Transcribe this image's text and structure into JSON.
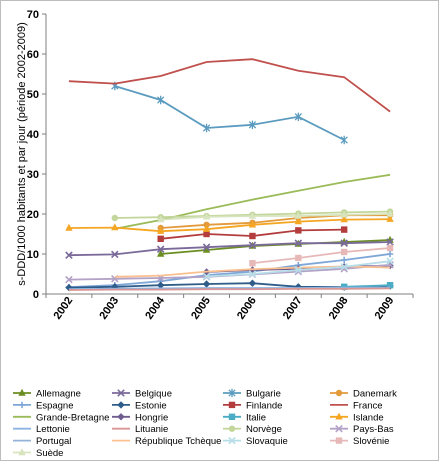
{
  "chart_data": {
    "type": "line",
    "title": "",
    "ylabel": "s-DDD/1000 habitants et par jour (période 2002-2009)",
    "xlabel": "",
    "ylim": [
      0,
      70
    ],
    "yticks": [
      0,
      10,
      20,
      30,
      40,
      50,
      60,
      70
    ],
    "x": [
      "2002",
      "2003",
      "2004",
      "2005",
      "2006",
      "2007",
      "2008",
      "2009"
    ],
    "grid": false,
    "legend_position": "bottom",
    "series": [
      {
        "name": "Allemagne",
        "color": "#6b8e23",
        "marker": "triangle",
        "values": [
          null,
          null,
          10,
          11,
          12,
          12.5,
          13,
          13.5
        ]
      },
      {
        "name": "Belgique",
        "color": "#7a6a9a",
        "marker": "x",
        "values": [
          9.7,
          9.9,
          11.2,
          11.7,
          12.2,
          12.7,
          12.7,
          13
        ]
      },
      {
        "name": "Bulgarie",
        "color": "#5b9bbf",
        "marker": "star",
        "values": [
          null,
          52,
          48.5,
          41.5,
          42.3,
          44.3,
          38.5,
          null
        ]
      },
      {
        "name": "Danemark",
        "color": "#e39a3b",
        "marker": "circle",
        "values": [
          null,
          null,
          16.5,
          17.3,
          17.8,
          19,
          19.7,
          19.7
        ]
      },
      {
        "name": "Espagne",
        "color": "#7ea7d8",
        "marker": "plus",
        "values": [
          1.7,
          2.2,
          3.2,
          4.7,
          5.6,
          7.2,
          8.5,
          10
        ]
      },
      {
        "name": "Estonie",
        "color": "#2f5d8a",
        "marker": "diamond",
        "values": [
          1.6,
          1.8,
          2.2,
          2.5,
          2.7,
          1.8,
          1.7,
          2
        ]
      },
      {
        "name": "Finlande",
        "color": "#b33d3d",
        "marker": "square",
        "values": [
          null,
          null,
          13.8,
          15,
          14.5,
          15.9,
          16.1,
          null
        ]
      },
      {
        "name": "France",
        "color": "#c0504d",
        "marker": "none",
        "values": [
          53.2,
          52.6,
          54.5,
          58,
          58.7,
          55.8,
          54.2,
          45.6
        ]
      },
      {
        "name": "Grande-Bretagne",
        "color": "#9bbb59",
        "marker": "none",
        "values": [
          null,
          16.3,
          18.5,
          21.2,
          23.6,
          25.8,
          28,
          29.8
        ]
      },
      {
        "name": "Hongrie",
        "color": "#6f5b8e",
        "marker": "diamond",
        "values": [
          null,
          null,
          null,
          5.5,
          6,
          6.3,
          6.8,
          7.1
        ]
      },
      {
        "name": "Italie",
        "color": "#4bacc6",
        "marker": "square",
        "values": [
          null,
          null,
          null,
          null,
          null,
          null,
          1.8,
          2.2
        ]
      },
      {
        "name": "Islande",
        "color": "#f5a623",
        "marker": "triangle",
        "values": [
          16.5,
          16.6,
          15.7,
          16.2,
          17.3,
          18.1,
          18.6,
          18.7
        ]
      },
      {
        "name": "Lettonie",
        "color": "#8db3e2",
        "marker": "none",
        "values": [
          1.2,
          1.3,
          1.4,
          1.5,
          1.5,
          1.5,
          1.6,
          1.6
        ]
      },
      {
        "name": "Lituanie",
        "color": "#d99694",
        "marker": "none",
        "values": [
          1.0,
          1.1,
          1.1,
          1.2,
          1.2,
          1.3,
          1.3,
          1.4
        ]
      },
      {
        "name": "Norvège",
        "color": "#c3d69b",
        "marker": "circle",
        "values": [
          null,
          19,
          19.2,
          19.5,
          19.8,
          20.1,
          20.4,
          20.6
        ]
      },
      {
        "name": "Pays-Bas",
        "color": "#b3a2c7",
        "marker": "x",
        "values": [
          3.6,
          3.8,
          4,
          4.3,
          4.9,
          5.6,
          6.3,
          7.3
        ]
      },
      {
        "name": "Portugal",
        "color": "#95b3d7",
        "marker": "none",
        "values": [
          null,
          null,
          null,
          null,
          null,
          null,
          null,
          null
        ]
      },
      {
        "name": "République Tchèque",
        "color": "#fac090",
        "marker": "none",
        "values": [
          null,
          4.3,
          4.6,
          5.6,
          6.2,
          6.6,
          6.9,
          6.6
        ]
      },
      {
        "name": "Slovaquie",
        "color": "#b7dee8",
        "marker": "x",
        "values": [
          null,
          null,
          null,
          4.4,
          5,
          6,
          6.8,
          8.2
        ]
      },
      {
        "name": "Slovénie",
        "color": "#e6b9b8",
        "marker": "square",
        "values": [
          null,
          null,
          null,
          null,
          7.7,
          9,
          10.5,
          11.5
        ]
      },
      {
        "name": "Suède",
        "color": "#d7e4bd",
        "marker": "triangle",
        "values": [
          null,
          null,
          18.6,
          19.3,
          19.5,
          19.5,
          19.8,
          20
        ]
      }
    ]
  }
}
